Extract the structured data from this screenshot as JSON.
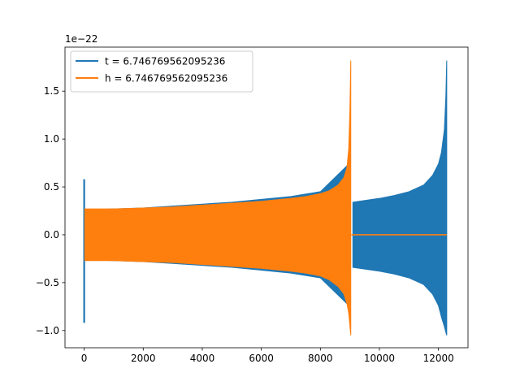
{
  "chart_data": {
    "type": "line",
    "offset_text": "1e−22",
    "xlim": [
      -650,
      13000
    ],
    "ylim": [
      -1.18,
      1.96
    ],
    "x_ticks": [
      {
        "value": 0,
        "label": "0"
      },
      {
        "value": 2000,
        "label": "2000"
      },
      {
        "value": 4000,
        "label": "4000"
      },
      {
        "value": 6000,
        "label": "6000"
      },
      {
        "value": 8000,
        "label": "8000"
      },
      {
        "value": 10000,
        "label": "10000"
      },
      {
        "value": 12000,
        "label": "12000"
      }
    ],
    "y_ticks": [
      {
        "value": -1.0,
        "label": "−1.0"
      },
      {
        "value": -0.5,
        "label": "−0.5"
      },
      {
        "value": 0.0,
        "label": "0.0"
      },
      {
        "value": 0.5,
        "label": "0.5"
      },
      {
        "value": 1.0,
        "label": "1.0"
      },
      {
        "value": 1.5,
        "label": "1.5"
      }
    ],
    "legend_position": "upper-left",
    "series": [
      {
        "name": "t = 6.746769562095236",
        "color": "#1f77b4",
        "segments": [
          {
            "kind": "spike",
            "x": 0,
            "ymax": 0.58,
            "ymin": -0.92
          },
          {
            "kind": "band",
            "x": [
              0,
              1000,
              2000,
              3000,
              4000,
              5000,
              6000,
              7000,
              8000,
              9000
            ],
            "upper": [
              0.26,
              0.27,
              0.28,
              0.3,
              0.32,
              0.34,
              0.37,
              0.4,
              0.45,
              0.75
            ],
            "lower": [
              -0.26,
              -0.27,
              -0.28,
              -0.3,
              -0.32,
              -0.34,
              -0.37,
              -0.4,
              -0.45,
              -0.75
            ]
          },
          {
            "kind": "band",
            "x": [
              9100,
              10000,
              10500,
              11000,
              11500,
              11800,
              12000,
              12100,
              12200,
              12250,
              12280
            ],
            "upper": [
              0.34,
              0.38,
              0.41,
              0.45,
              0.52,
              0.62,
              0.74,
              0.86,
              1.1,
              1.45,
              1.82
            ],
            "lower": [
              -0.34,
              -0.38,
              -0.41,
              -0.45,
              -0.52,
              -0.62,
              -0.74,
              -0.86,
              -0.96,
              -1.02,
              -1.05
            ]
          },
          {
            "kind": "line",
            "x": [
              9100,
              12280
            ],
            "y": [
              0.0,
              0.0
            ]
          }
        ]
      },
      {
        "name": "h = 6.746769562095236",
        "color": "#ff7f0e",
        "segments": [
          {
            "kind": "band",
            "x": [
              20,
              1000,
              2000,
              3000,
              4000,
              5000,
              6000,
              7000,
              7500,
              8000,
              8300,
              8600,
              8800,
              8900,
              8960,
              9000,
              9030
            ],
            "upper": [
              0.27,
              0.27,
              0.28,
              0.29,
              0.31,
              0.33,
              0.35,
              0.38,
              0.4,
              0.43,
              0.46,
              0.52,
              0.6,
              0.7,
              0.9,
              1.3,
              1.82
            ],
            "lower": [
              -0.27,
              -0.27,
              -0.28,
              -0.29,
              -0.31,
              -0.33,
              -0.35,
              -0.38,
              -0.4,
              -0.43,
              -0.47,
              -0.54,
              -0.62,
              -0.72,
              -0.82,
              -0.95,
              -1.05
            ]
          },
          {
            "kind": "line",
            "x": [
              9050,
              12280
            ],
            "y": [
              0.0,
              0.0
            ]
          }
        ]
      }
    ]
  }
}
